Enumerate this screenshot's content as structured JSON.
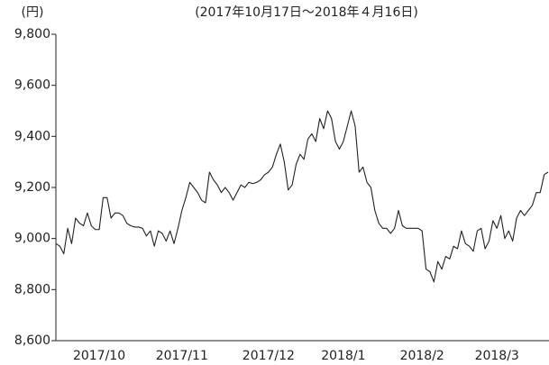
{
  "chart_data": {
    "type": "line",
    "y_unit": "(円)",
    "title": "(2017年10月17日～2018年４月16日)",
    "categories": [
      null,
      null,
      null,
      null,
      null,
      null,
      null,
      null,
      null,
      null,
      null,
      "2017/10",
      null,
      null,
      null,
      null,
      null,
      null,
      null,
      null,
      null,
      null,
      null,
      null,
      null,
      null,
      null,
      null,
      null,
      null,
      null,
      null,
      "2017/11",
      null,
      null,
      null,
      null,
      null,
      null,
      null,
      null,
      null,
      null,
      null,
      null,
      null,
      null,
      null,
      null,
      null,
      null,
      null,
      null,
      null,
      "2017/12",
      null,
      null,
      null,
      null,
      null,
      null,
      null,
      null,
      null,
      null,
      null,
      null,
      null,
      null,
      null,
      null,
      null,
      null,
      "2018/1",
      null,
      null,
      null,
      null,
      null,
      null,
      null,
      null,
      null,
      null,
      null,
      null,
      null,
      null,
      null,
      null,
      null,
      null,
      null,
      "2018/2",
      null,
      null,
      null,
      null,
      null,
      null,
      null,
      null,
      null,
      null,
      null,
      null,
      null,
      null,
      null,
      null,
      null,
      null,
      "2018/3",
      null,
      null,
      null,
      null,
      null,
      null,
      null,
      null,
      null,
      null,
      null,
      null,
      null
    ],
    "series": [
      {
        "color": "#222222",
        "values": [
          8980,
          8970,
          8940,
          9040,
          8980,
          9080,
          9060,
          9050,
          9100,
          9050,
          9035,
          9035,
          9160,
          9160,
          9080,
          9100,
          9100,
          9090,
          9060,
          9050,
          9045,
          9045,
          9040,
          9010,
          9030,
          8970,
          9030,
          9020,
          8990,
          9030,
          8980,
          9040,
          9110,
          9160,
          9220,
          9200,
          9180,
          9150,
          9140,
          9260,
          9230,
          9210,
          9180,
          9200,
          9180,
          9150,
          9180,
          9210,
          9200,
          9220,
          9215,
          9220,
          9230,
          9250,
          9260,
          9280,
          9330,
          9370,
          9300,
          9190,
          9210,
          9290,
          9330,
          9310,
          9390,
          9410,
          9380,
          9470,
          9430,
          9500,
          9470,
          9380,
          9350,
          9380,
          9440,
          9500,
          9440,
          9260,
          9280,
          9220,
          9200,
          9110,
          9060,
          9040,
          9040,
          9020,
          9040,
          9110,
          9050,
          9040,
          9040,
          9040,
          9040,
          9030,
          8880,
          8870,
          8830,
          8910,
          8880,
          8930,
          8920,
          8970,
          8960,
          9030,
          8980,
          8970,
          8950,
          9030,
          9040,
          8960,
          8990,
          9070,
          9040,
          9090,
          9000,
          9030,
          8990,
          9080,
          9110,
          9090,
          9110,
          9130,
          9180,
          9180,
          9250,
          9260
        ]
      }
    ],
    "ylim": [
      8600,
      9800
    ],
    "yticks": [
      {
        "value": 8600,
        "label": "8,600"
      },
      {
        "value": 8800,
        "label": "8,800"
      },
      {
        "value": 9000,
        "label": "9,000"
      },
      {
        "value": 9200,
        "label": "9,200"
      },
      {
        "value": 9400,
        "label": "9,400"
      },
      {
        "value": 9600,
        "label": "9,600"
      },
      {
        "value": 9800,
        "label": "9,800"
      }
    ]
  }
}
